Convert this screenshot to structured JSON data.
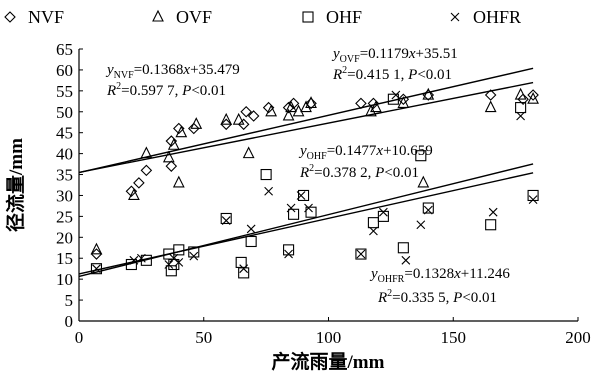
{
  "chart_data": {
    "type": "scatter",
    "xlabel": "产流雨量/mm",
    "ylabel": "径流量/mm",
    "xlim": [
      0,
      200
    ],
    "ylim": [
      0,
      65
    ],
    "xticks": [
      "0",
      "50",
      "100",
      "150",
      "200"
    ],
    "yticks": [
      "0",
      "5",
      "10",
      "15",
      "20",
      "25",
      "30",
      "35",
      "40",
      "45",
      "50",
      "55",
      "60",
      "65"
    ],
    "legend_position": "top",
    "series": [
      {
        "name": "NVF",
        "marker": "diamond",
        "points": [
          [
            7,
            16
          ],
          [
            21,
            31
          ],
          [
            24,
            33
          ],
          [
            27,
            36
          ],
          [
            37,
            37
          ],
          [
            37,
            43
          ],
          [
            40,
            46
          ],
          [
            46,
            46
          ],
          [
            59,
            47
          ],
          [
            66,
            47
          ],
          [
            67,
            50
          ],
          [
            70,
            49
          ],
          [
            76,
            51
          ],
          [
            84,
            51
          ],
          [
            86,
            52
          ],
          [
            93,
            52
          ],
          [
            113,
            52
          ],
          [
            118,
            52
          ],
          [
            130,
            53
          ],
          [
            140,
            54
          ],
          [
            165,
            54
          ],
          [
            178,
            53
          ],
          [
            182,
            54
          ]
        ]
      },
      {
        "name": "OVF",
        "marker": "triangle",
        "points": [
          [
            7,
            17
          ],
          [
            22,
            30
          ],
          [
            27,
            40
          ],
          [
            36,
            39
          ],
          [
            38,
            42
          ],
          [
            40,
            33
          ],
          [
            41,
            45
          ],
          [
            47,
            47
          ],
          [
            59,
            48
          ],
          [
            64,
            48
          ],
          [
            68,
            40
          ],
          [
            77,
            50
          ],
          [
            84,
            49
          ],
          [
            85,
            51
          ],
          [
            88,
            50
          ],
          [
            91,
            51
          ],
          [
            93,
            52
          ],
          [
            117,
            50
          ],
          [
            119,
            51
          ],
          [
            130,
            52
          ],
          [
            138,
            33
          ],
          [
            140,
            54
          ],
          [
            165,
            51
          ],
          [
            177,
            54
          ],
          [
            182,
            53
          ]
        ]
      },
      {
        "name": "OHF",
        "marker": "square",
        "points": [
          [
            7,
            12.5
          ],
          [
            21,
            13.5
          ],
          [
            27,
            14.5
          ],
          [
            36,
            16
          ],
          [
            37,
            12
          ],
          [
            38,
            13.5
          ],
          [
            40,
            17
          ],
          [
            46,
            16.5
          ],
          [
            59,
            24.5
          ],
          [
            65,
            14
          ],
          [
            66,
            11.5
          ],
          [
            69,
            19
          ],
          [
            75,
            35
          ],
          [
            84,
            17
          ],
          [
            86,
            25.5
          ],
          [
            90,
            30
          ],
          [
            93,
            26
          ],
          [
            113,
            16
          ],
          [
            118,
            23.5
          ],
          [
            122,
            25
          ],
          [
            126,
            53
          ],
          [
            130,
            17.5
          ],
          [
            137,
            39.5
          ],
          [
            140,
            27
          ],
          [
            165,
            23
          ],
          [
            177,
            51
          ],
          [
            182,
            30
          ]
        ]
      },
      {
        "name": "OHFR",
        "marker": "x",
        "points": [
          [
            7,
            12.5
          ],
          [
            22,
            14.5
          ],
          [
            25,
            15
          ],
          [
            36,
            13.5
          ],
          [
            38,
            15
          ],
          [
            40,
            14
          ],
          [
            46,
            15.5
          ],
          [
            59,
            24
          ],
          [
            66,
            12.5
          ],
          [
            69,
            22
          ],
          [
            76,
            31
          ],
          [
            84,
            16
          ],
          [
            85,
            27
          ],
          [
            89,
            30
          ],
          [
            92,
            27
          ],
          [
            113,
            16
          ],
          [
            118,
            21.5
          ],
          [
            122,
            26
          ],
          [
            127,
            54
          ],
          [
            131,
            14.5
          ],
          [
            137,
            23
          ],
          [
            140,
            26.5
          ],
          [
            166,
            26
          ],
          [
            177,
            49
          ],
          [
            182,
            29
          ]
        ]
      }
    ],
    "fits": [
      {
        "for": "NVF",
        "slope": 0.1368,
        "intercept": 35.479
      },
      {
        "for": "OVF",
        "slope": 0.1179,
        "intercept": 35.51
      },
      {
        "for": "OHF",
        "slope": 0.1477,
        "intercept": 10.659
      },
      {
        "for": "OHFR",
        "slope": 0.1328,
        "intercept": 11.246
      }
    ],
    "annotations": [
      {
        "id": "nvf",
        "lines": [
          [
            [
              "y",
              "it"
            ],
            [
              "NVF",
              "sub"
            ],
            [
              "=0.1368",
              ""
            ],
            [
              "x",
              "it"
            ],
            [
              "+35.479",
              ""
            ]
          ],
          [
            [
              "R",
              "it"
            ],
            [
              "2",
              "sup"
            ],
            [
              "=0.597 7, ",
              ""
            ],
            [
              "P",
              "it"
            ],
            [
              "<0.01",
              ""
            ]
          ]
        ]
      },
      {
        "id": "ovf",
        "lines": [
          [
            [
              "y",
              "it"
            ],
            [
              "OVF",
              "sub"
            ],
            [
              "=0.1179",
              ""
            ],
            [
              "x",
              "it"
            ],
            [
              "+35.51",
              ""
            ]
          ],
          [
            [
              "R",
              "it"
            ],
            [
              "2",
              "sup"
            ],
            [
              "=0.415 1, ",
              ""
            ],
            [
              "P",
              "it"
            ],
            [
              "<0.01",
              ""
            ]
          ]
        ]
      },
      {
        "id": "ohf",
        "lines": [
          [
            [
              "y",
              "it"
            ],
            [
              "OHF",
              "sub"
            ],
            [
              "=0.1477",
              ""
            ],
            [
              "x",
              "it"
            ],
            [
              "+10.659",
              ""
            ]
          ],
          [
            [
              "R",
              "it"
            ],
            [
              "2",
              "sup"
            ],
            [
              "=0.378 2, ",
              ""
            ],
            [
              "P",
              "it"
            ],
            [
              "<0.01",
              ""
            ]
          ]
        ]
      },
      {
        "id": "ohfr",
        "lines": [
          [
            [
              "y",
              "it"
            ],
            [
              "OHFR",
              "sub"
            ],
            [
              "=0.1328",
              ""
            ],
            [
              "x",
              "it"
            ],
            [
              "+11.246",
              ""
            ]
          ],
          [
            [
              "R",
              "it"
            ],
            [
              "2",
              "sup"
            ],
            [
              "=0.335 5, ",
              ""
            ],
            [
              "P",
              "it"
            ],
            [
              "<0.01",
              ""
            ]
          ]
        ]
      }
    ]
  }
}
